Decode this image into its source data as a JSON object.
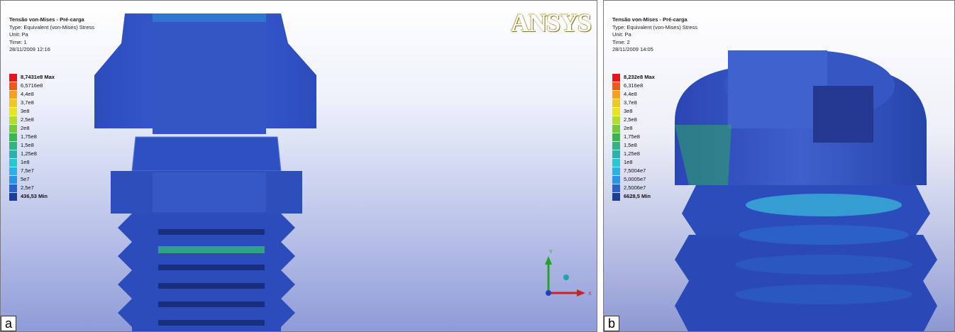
{
  "panels": [
    {
      "id": "a",
      "title": "Tensão von-Mises - Pré-carga",
      "type_line": "Type: Equivalent (von-Mises) Stress",
      "unit_line": "Unit: Pa",
      "time_line": "Time: 1",
      "date_line": "28/11/2009 12:16",
      "legend": [
        {
          "label": "8,7431e8 Max",
          "color": "#e8141e"
        },
        {
          "label": "6,5716e8",
          "color": "#f05a14"
        },
        {
          "label": "4,4e8",
          "color": "#f5a01e"
        },
        {
          "label": "3,7e8",
          "color": "#f0c81e"
        },
        {
          "label": "3e8",
          "color": "#e6e61e"
        },
        {
          "label": "2,5e8",
          "color": "#b4dc28"
        },
        {
          "label": "2e8",
          "color": "#78c83c"
        },
        {
          "label": "1,75e8",
          "color": "#3cb450"
        },
        {
          "label": "1,5e8",
          "color": "#32b482"
        },
        {
          "label": "1,25e8",
          "color": "#28b4aa"
        },
        {
          "label": "1e8",
          "color": "#28c8d2"
        },
        {
          "label": "7,5e7",
          "color": "#28b4e6"
        },
        {
          "label": "5e7",
          "color": "#2896e6"
        },
        {
          "label": "2,5e7",
          "color": "#2864c8"
        },
        {
          "label": "436,53 Min",
          "color": "#1e3c96"
        }
      ],
      "logo": "ANSYS",
      "axis_y": "Y",
      "axis_x": "X",
      "tag": "a"
    },
    {
      "id": "b",
      "title": "Tensão von-Mises - Pré-carga",
      "type_line": "Type: Equivalent (von-Mises) Stress",
      "unit_line": "Unit: Pa",
      "time_line": "Time: 2",
      "date_line": "28/11/2009 14:05",
      "legend": [
        {
          "label": "8,232e8 Max",
          "color": "#e8141e"
        },
        {
          "label": "6,316e8",
          "color": "#f05a14"
        },
        {
          "label": "4,4e8",
          "color": "#f5a01e"
        },
        {
          "label": "3,7e8",
          "color": "#f0c81e"
        },
        {
          "label": "3e8",
          "color": "#e6e61e"
        },
        {
          "label": "2,5e8",
          "color": "#b4dc28"
        },
        {
          "label": "2e8",
          "color": "#78c83c"
        },
        {
          "label": "1,75e8",
          "color": "#3cb450"
        },
        {
          "label": "1,5e8",
          "color": "#32b482"
        },
        {
          "label": "1,25e8",
          "color": "#28b4aa"
        },
        {
          "label": "1e8",
          "color": "#28c8d2"
        },
        {
          "label": "7,5004e7",
          "color": "#28b4e6"
        },
        {
          "label": "5,0005e7",
          "color": "#2896e6"
        },
        {
          "label": "2,5006e7",
          "color": "#2864c8"
        },
        {
          "label": "6628,5 Min",
          "color": "#1e3c96"
        }
      ],
      "tag": "b"
    }
  ]
}
